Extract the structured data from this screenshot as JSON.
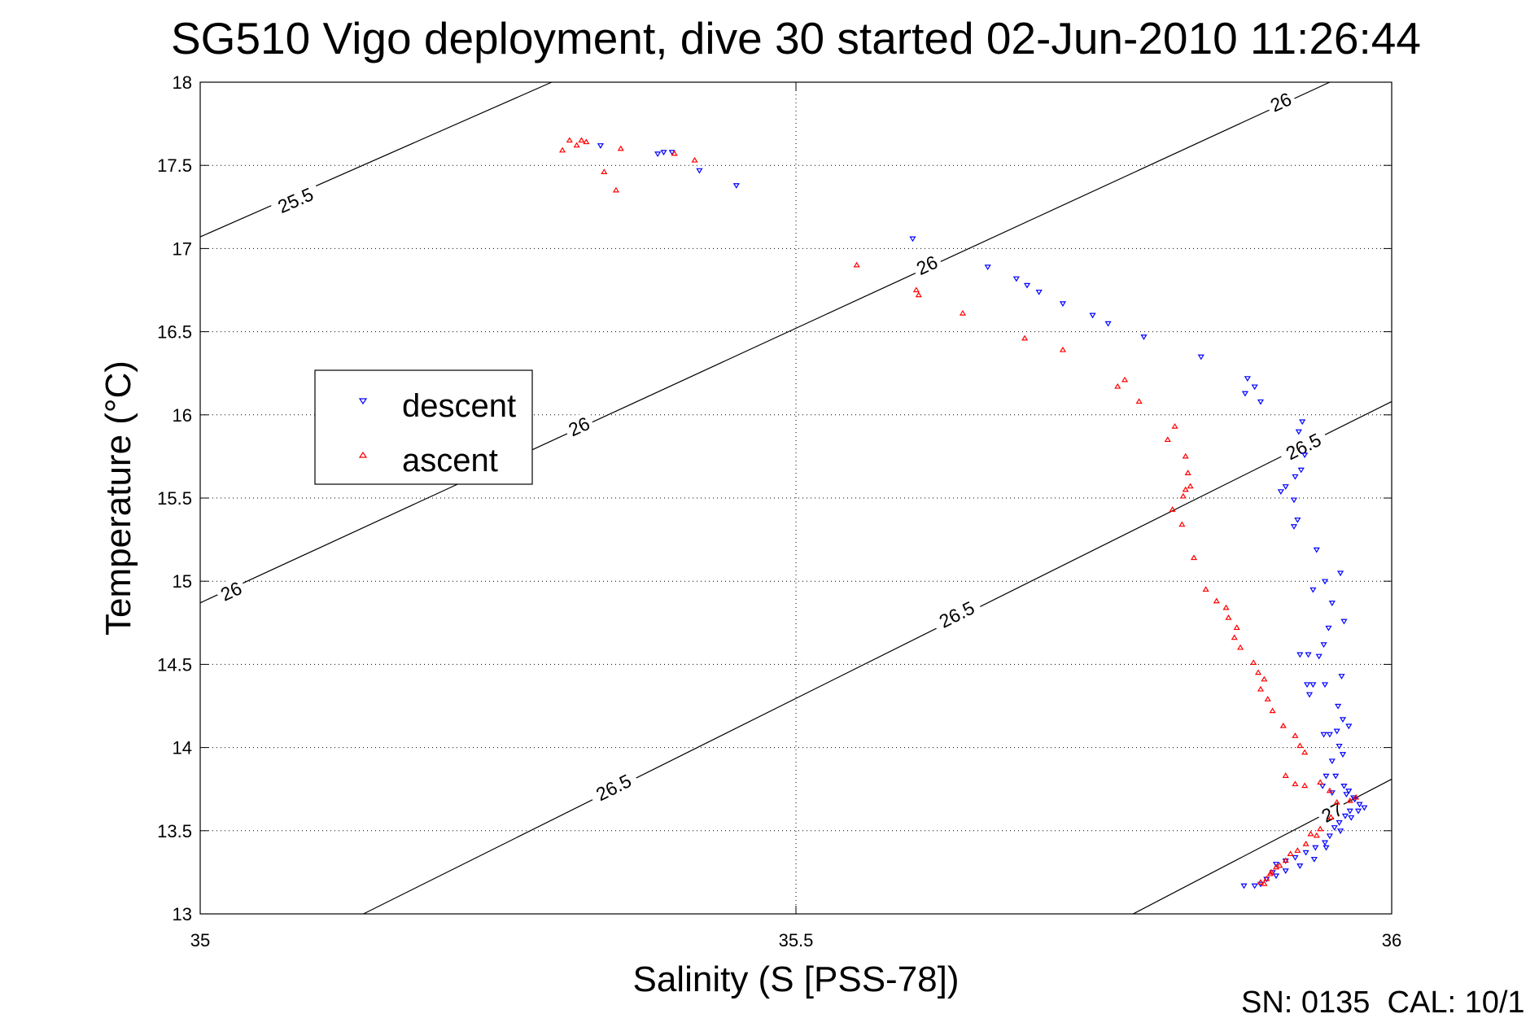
{
  "chart_data": {
    "type": "scatter",
    "title": "SG510 Vigo deployment, dive 30 started 02-Jun-2010 11:26:44",
    "xlabel": "Salinity (S [PSS-78])",
    "ylabel": "Temperature (°C)",
    "xlim": [
      35,
      36
    ],
    "ylim": [
      13,
      18
    ],
    "xticks": [
      "35",
      "35.5",
      "36"
    ],
    "xtick_values": [
      35,
      35.5,
      36
    ],
    "yticks": [
      "13",
      "13.5",
      "14",
      "14.5",
      "15",
      "15.5",
      "16",
      "16.5",
      "17",
      "17.5",
      "18"
    ],
    "ytick_values": [
      13,
      13.5,
      14,
      14.5,
      15,
      15.5,
      16,
      16.5,
      17,
      17.5,
      18
    ],
    "grid": true,
    "legend_position": "left-middle",
    "footer": "SN: 0135  CAL: 10/1",
    "colors": {
      "descent": "#0000ff",
      "ascent": "#ff0000",
      "contour": "#000000"
    },
    "series": [
      {
        "name": "descent",
        "marker": "triangle-down",
        "points": [
          [
            35.336,
            17.62
          ],
          [
            35.384,
            17.57
          ],
          [
            35.389,
            17.58
          ],
          [
            35.396,
            17.58
          ],
          [
            35.419,
            17.47
          ],
          [
            35.45,
            17.38
          ],
          [
            35.598,
            17.06
          ],
          [
            35.661,
            16.89
          ],
          [
            35.685,
            16.82
          ],
          [
            35.694,
            16.78
          ],
          [
            35.704,
            16.74
          ],
          [
            35.724,
            16.67
          ],
          [
            35.749,
            16.6
          ],
          [
            35.762,
            16.55
          ],
          [
            35.792,
            16.47
          ],
          [
            35.84,
            16.35
          ],
          [
            35.879,
            16.22
          ],
          [
            35.885,
            16.17
          ],
          [
            35.877,
            16.13
          ],
          [
            35.89,
            16.08
          ],
          [
            35.925,
            15.96
          ],
          [
            35.922,
            15.9
          ],
          [
            35.927,
            15.76
          ],
          [
            35.924,
            15.67
          ],
          [
            35.919,
            15.63
          ],
          [
            35.911,
            15.57
          ],
          [
            35.907,
            15.54
          ],
          [
            35.918,
            15.49
          ],
          [
            35.921,
            15.37
          ],
          [
            35.918,
            15.33
          ],
          [
            35.937,
            15.19
          ],
          [
            35.957,
            15.05
          ],
          [
            35.944,
            15.0
          ],
          [
            35.934,
            14.95
          ],
          [
            35.95,
            14.87
          ],
          [
            35.96,
            14.76
          ],
          [
            35.947,
            14.72
          ],
          [
            35.943,
            14.62
          ],
          [
            35.923,
            14.56
          ],
          [
            35.93,
            14.56
          ],
          [
            35.939,
            14.55
          ],
          [
            35.958,
            14.43
          ],
          [
            35.929,
            14.38
          ],
          [
            35.934,
            14.38
          ],
          [
            35.931,
            14.32
          ],
          [
            35.944,
            14.38
          ],
          [
            35.955,
            14.25
          ],
          [
            35.959,
            14.17
          ],
          [
            35.964,
            14.13
          ],
          [
            35.943,
            14.08
          ],
          [
            35.948,
            14.08
          ],
          [
            35.954,
            14.1
          ],
          [
            35.956,
            14.01
          ],
          [
            35.95,
            13.92
          ],
          [
            35.959,
            13.96
          ],
          [
            35.945,
            13.83
          ],
          [
            35.953,
            13.83
          ],
          [
            35.942,
            13.77
          ],
          [
            35.95,
            13.73
          ],
          [
            35.96,
            13.77
          ],
          [
            35.964,
            13.74
          ],
          [
            35.969,
            13.69
          ],
          [
            35.973,
            13.66
          ],
          [
            35.977,
            13.64
          ],
          [
            35.965,
            13.62
          ],
          [
            35.961,
            13.59
          ],
          [
            35.956,
            13.55
          ],
          [
            35.952,
            13.52
          ],
          [
            35.948,
            13.47
          ],
          [
            35.944,
            13.43
          ],
          [
            35.936,
            13.4
          ],
          [
            35.928,
            13.37
          ],
          [
            35.919,
            13.34
          ],
          [
            35.911,
            13.32
          ],
          [
            35.903,
            13.3
          ],
          [
            35.9,
            13.25
          ],
          [
            35.895,
            13.21
          ],
          [
            35.89,
            13.18
          ],
          [
            35.885,
            13.17
          ],
          [
            35.876,
            13.17
          ],
          [
            35.903,
            13.23
          ],
          [
            35.911,
            13.26
          ],
          [
            35.923,
            13.29
          ],
          [
            35.935,
            13.33
          ],
          [
            35.945,
            13.4
          ],
          [
            35.957,
            13.5
          ],
          [
            35.966,
            13.58
          ],
          [
            35.972,
            13.62
          ],
          [
            35.968,
            13.7
          ],
          [
            35.962,
            13.72
          ]
        ]
      },
      {
        "name": "ascent",
        "marker": "triangle-up",
        "points": [
          [
            35.304,
            17.59
          ],
          [
            35.31,
            17.65
          ],
          [
            35.316,
            17.62
          ],
          [
            35.32,
            17.65
          ],
          [
            35.324,
            17.64
          ],
          [
            35.339,
            17.46
          ],
          [
            35.349,
            17.35
          ],
          [
            35.353,
            17.6
          ],
          [
            35.398,
            17.57
          ],
          [
            35.415,
            17.53
          ],
          [
            35.551,
            16.9
          ],
          [
            35.601,
            16.75
          ],
          [
            35.603,
            16.72
          ],
          [
            35.64,
            16.61
          ],
          [
            35.692,
            16.46
          ],
          [
            35.724,
            16.39
          ],
          [
            35.77,
            16.17
          ],
          [
            35.776,
            16.21
          ],
          [
            35.788,
            16.08
          ],
          [
            35.818,
            15.93
          ],
          [
            35.812,
            15.85
          ],
          [
            35.827,
            15.75
          ],
          [
            35.829,
            15.65
          ],
          [
            35.831,
            15.57
          ],
          [
            35.827,
            15.55
          ],
          [
            35.825,
            15.51
          ],
          [
            35.816,
            15.43
          ],
          [
            35.824,
            15.34
          ],
          [
            35.834,
            15.14
          ],
          [
            35.844,
            14.95
          ],
          [
            35.853,
            14.88
          ],
          [
            35.861,
            14.84
          ],
          [
            35.863,
            14.78
          ],
          [
            35.87,
            14.72
          ],
          [
            35.868,
            14.66
          ],
          [
            35.873,
            14.6
          ],
          [
            35.884,
            14.51
          ],
          [
            35.888,
            14.45
          ],
          [
            35.893,
            14.41
          ],
          [
            35.89,
            14.35
          ],
          [
            35.896,
            14.29
          ],
          [
            35.9,
            14.22
          ],
          [
            35.909,
            14.13
          ],
          [
            35.919,
            14.07
          ],
          [
            35.923,
            14.01
          ],
          [
            35.927,
            13.97
          ],
          [
            35.911,
            13.83
          ],
          [
            35.919,
            13.78
          ],
          [
            35.927,
            13.77
          ],
          [
            35.94,
            13.79
          ],
          [
            35.948,
            13.74
          ],
          [
            35.954,
            13.67
          ],
          [
            35.965,
            13.68
          ],
          [
            35.97,
            13.7
          ],
          [
            35.949,
            13.58
          ],
          [
            35.94,
            13.51
          ],
          [
            35.932,
            13.48
          ],
          [
            35.928,
            13.42
          ],
          [
            35.915,
            13.36
          ],
          [
            35.911,
            13.32
          ],
          [
            35.903,
            13.28
          ],
          [
            35.899,
            13.25
          ],
          [
            35.895,
            13.21
          ],
          [
            35.893,
            13.18
          ],
          [
            35.89,
            13.19
          ],
          [
            35.898,
            13.24
          ],
          [
            35.906,
            13.29
          ],
          [
            35.921,
            13.38
          ],
          [
            35.937,
            13.47
          ]
        ]
      }
    ],
    "contours": [
      {
        "level": "25.5",
        "from": [
          35.0,
          17.07
        ],
        "to": [
          35.295,
          18.0
        ],
        "labels_at": [
          [
            35.08,
            17.29
          ]
        ]
      },
      {
        "level": "26",
        "from": [
          35.0,
          14.87
        ],
        "to": [
          35.948,
          18.0
        ],
        "labels_at": [
          [
            35.026,
            14.94
          ],
          [
            35.318,
            15.93
          ],
          [
            35.61,
            16.9
          ],
          [
            35.907,
            17.88
          ]
        ]
      },
      {
        "level": "26.5",
        "from": [
          35.137,
          13.0
        ],
        "to": [
          36.0,
          16.08
        ],
        "labels_at": [
          [
            35.347,
            13.76
          ],
          [
            35.635,
            14.8
          ],
          [
            35.926,
            15.81
          ]
        ]
      },
      {
        "level": "27",
        "from": [
          35.783,
          13.0
        ],
        "to": [
          36.0,
          13.81
        ],
        "labels_at": [
          [
            35.95,
            13.61
          ]
        ]
      }
    ]
  }
}
